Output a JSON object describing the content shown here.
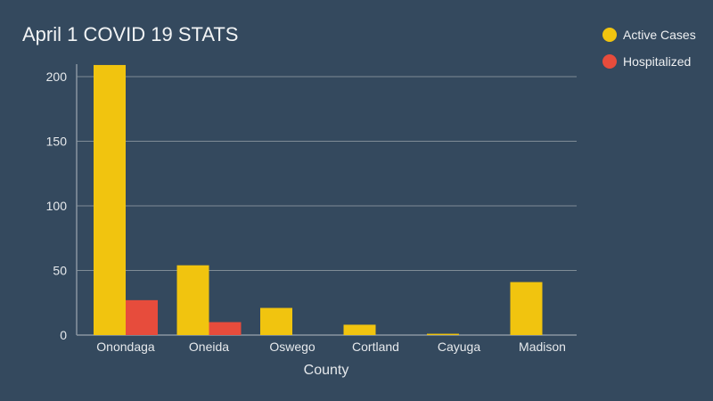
{
  "chart_data": {
    "type": "bar",
    "title": "April 1 COVID 19 STATS",
    "xlabel": "County",
    "ylabel": "",
    "categories": [
      "Onondaga",
      "Oneida",
      "Oswego",
      "Cortland",
      "Cayuga",
      "Madison"
    ],
    "series": [
      {
        "name": "Active Cases",
        "color": "#f1c40f",
        "values": [
          209,
          54,
          21,
          8,
          1,
          41
        ]
      },
      {
        "name": "Hospitalized",
        "color": "#e74c3c",
        "values": [
          27,
          10,
          0,
          0,
          0,
          0
        ]
      }
    ],
    "ylim": [
      0,
      210
    ],
    "yticks": [
      0,
      50,
      100,
      150,
      200
    ],
    "grid": true,
    "legend_position": "top-right"
  }
}
